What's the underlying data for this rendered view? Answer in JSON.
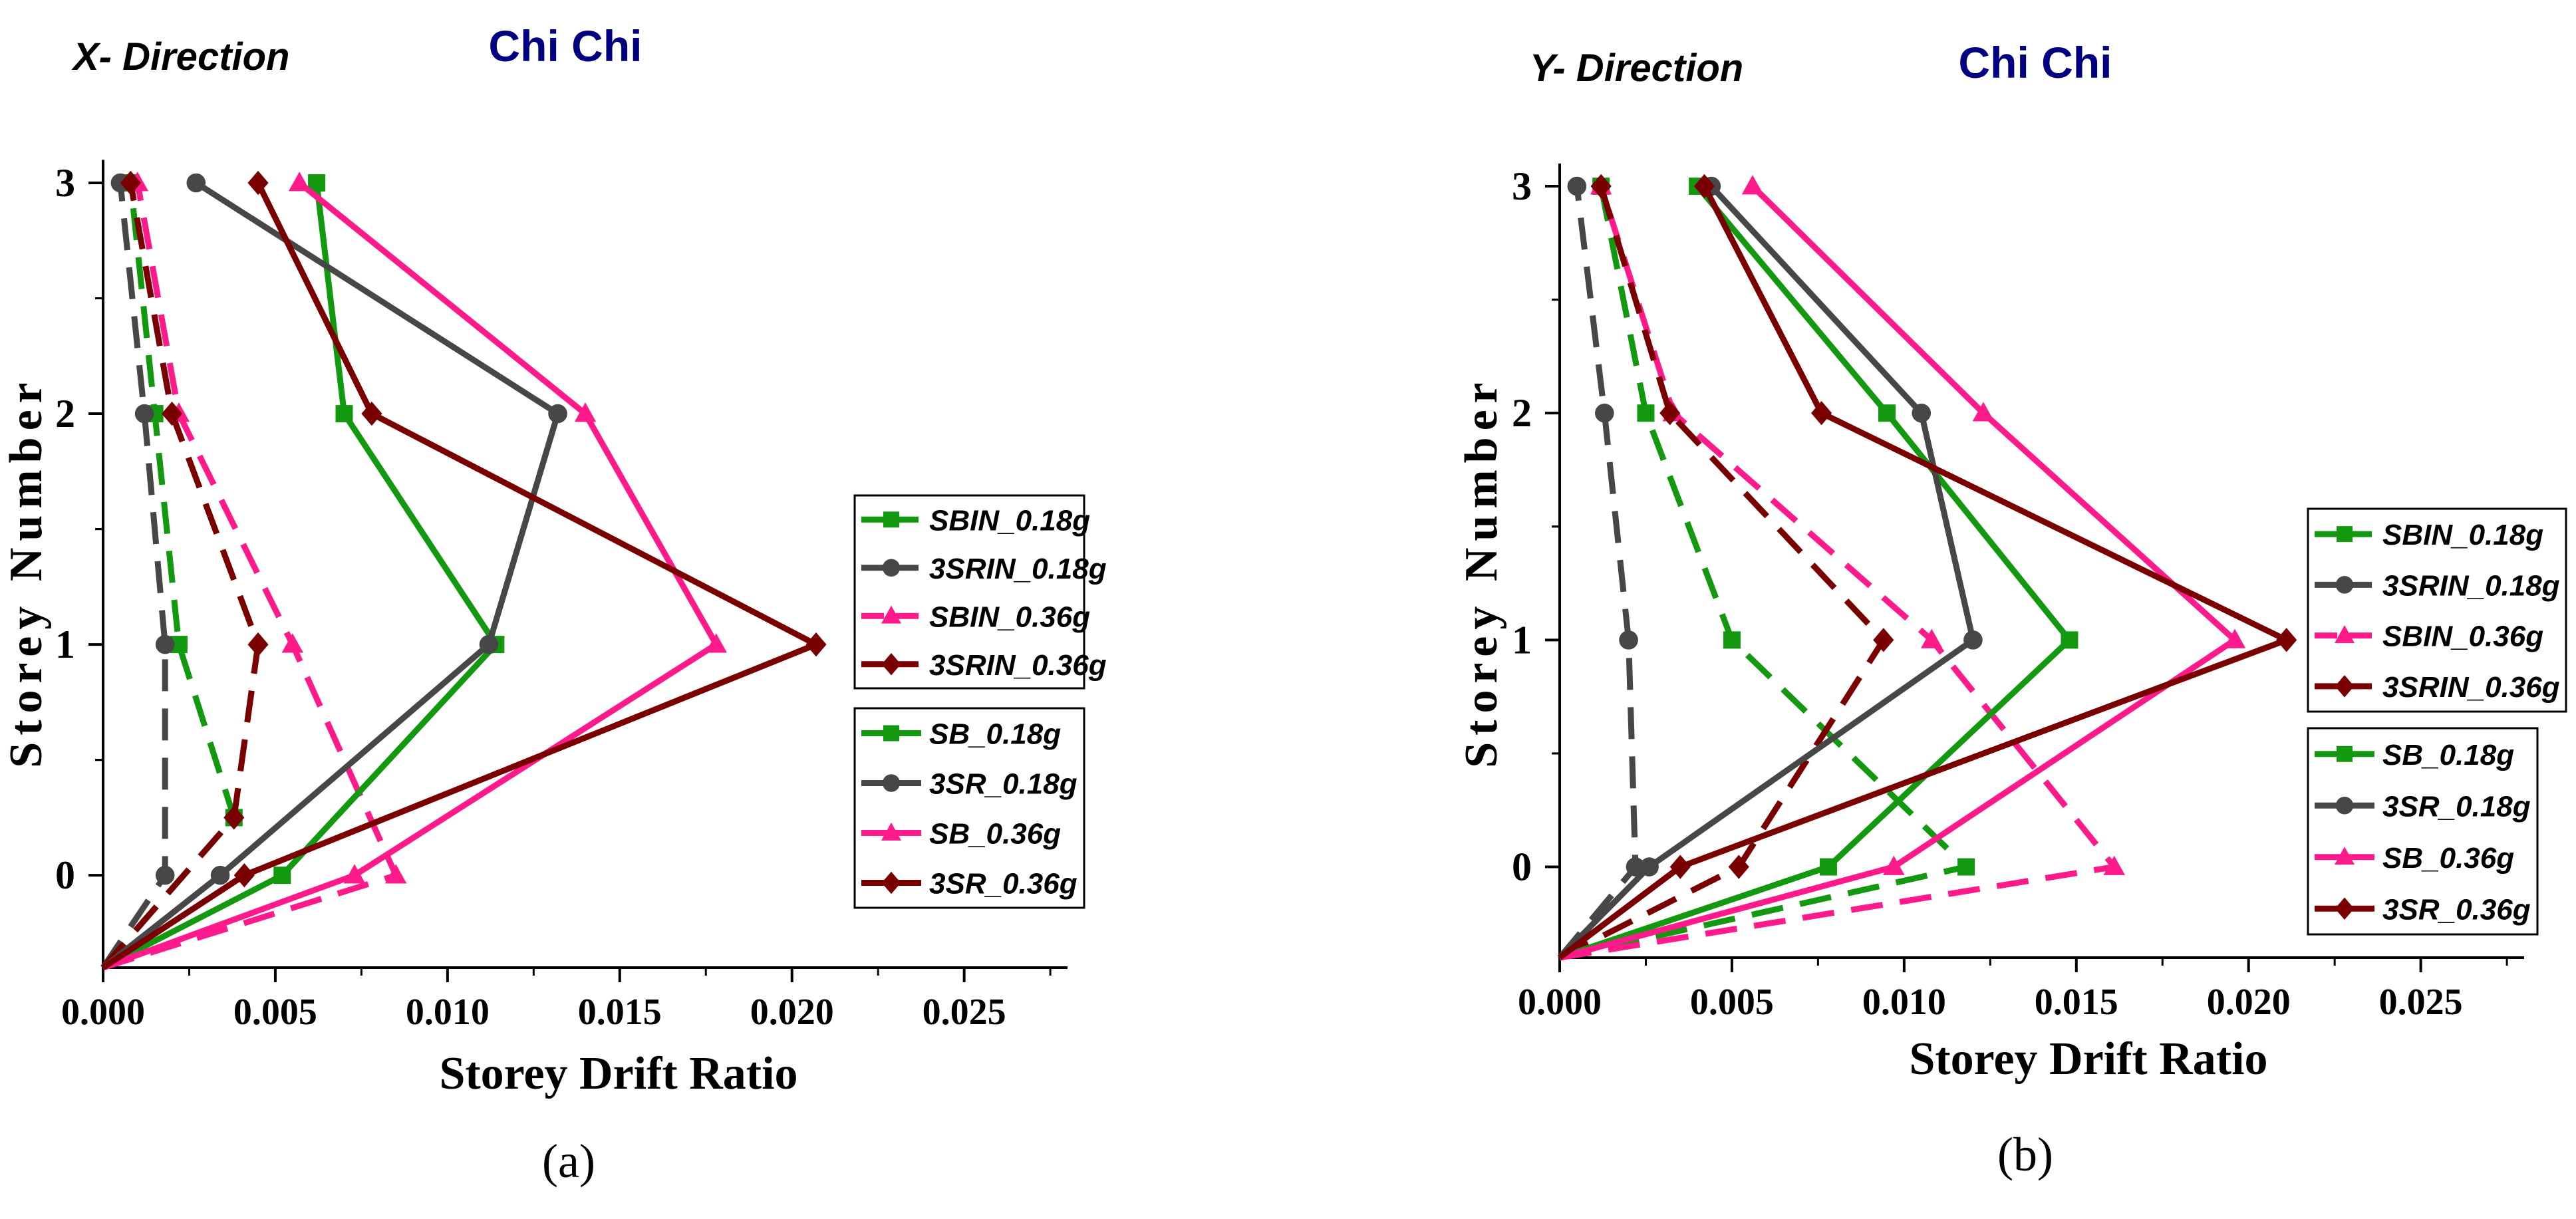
{
  "chart_data": [
    {
      "type": "line",
      "direction_label": "X- Direction",
      "title": "Chi Chi",
      "xlabel": "Storey Drift Ratio",
      "ylabel": "Storey Number",
      "xlim": [
        0,
        0.028
      ],
      "ylim": [
        -0.4,
        3.1
      ],
      "xticks": [
        "0.000",
        "0.005",
        "0.010",
        "0.015",
        "0.020",
        "0.025"
      ],
      "yticks": [
        "0",
        "1",
        "2",
        "3"
      ],
      "subcaption": "(a)",
      "series": [
        {
          "name": "SBIN_0.18g",
          "color": "#13990f",
          "dashed": true,
          "marker": "square",
          "points": [
            [
              0.0,
              -0.4
            ],
            [
              0.0038,
              0.25
            ],
            [
              0.0022,
              1
            ],
            [
              0.0015,
              2
            ],
            [
              0.0008,
              3
            ]
          ]
        },
        {
          "name": "3SRIN_0.18g",
          "color": "#474747",
          "dashed": true,
          "marker": "circle",
          "points": [
            [
              0.0,
              -0.4
            ],
            [
              0.0018,
              0
            ],
            [
              0.0018,
              1
            ],
            [
              0.0012,
              2
            ],
            [
              0.0005,
              3
            ]
          ]
        },
        {
          "name": "SBIN_0.36g",
          "color": "#ff1a8c",
          "dashed": true,
          "marker": "triangle",
          "points": [
            [
              0.0,
              -0.4
            ],
            [
              0.0085,
              0
            ],
            [
              0.0055,
              1
            ],
            [
              0.0022,
              2
            ],
            [
              0.001,
              3
            ]
          ]
        },
        {
          "name": "3SRIN_0.36g",
          "color": "#7a0000",
          "dashed": true,
          "marker": "diamond",
          "points": [
            [
              0.0,
              -0.4
            ],
            [
              0.0038,
              0.25
            ],
            [
              0.0045,
              1
            ],
            [
              0.002,
              2
            ],
            [
              0.0008,
              3
            ]
          ]
        },
        {
          "name": "SB_0.18g",
          "color": "#13990f",
          "dashed": false,
          "marker": "square",
          "points": [
            [
              0.0,
              -0.4
            ],
            [
              0.0052,
              0
            ],
            [
              0.0114,
              1
            ],
            [
              0.007,
              2
            ],
            [
              0.0062,
              3
            ]
          ]
        },
        {
          "name": "3SR_0.18g",
          "color": "#474747",
          "dashed": false,
          "marker": "circle",
          "points": [
            [
              0.0,
              -0.4
            ],
            [
              0.0034,
              0
            ],
            [
              0.0112,
              1
            ],
            [
              0.0132,
              2
            ],
            [
              0.0027,
              3
            ]
          ]
        },
        {
          "name": "SB_0.36g",
          "color": "#ff1a8c",
          "dashed": false,
          "marker": "triangle",
          "points": [
            [
              0.0,
              -0.4
            ],
            [
              0.0073,
              0
            ],
            [
              0.0178,
              1
            ],
            [
              0.014,
              2
            ],
            [
              0.0057,
              3
            ]
          ]
        },
        {
          "name": "3SR_0.36g",
          "color": "#7a0000",
          "dashed": false,
          "marker": "diamond",
          "points": [
            [
              0.0,
              -0.4
            ],
            [
              0.0041,
              0
            ],
            [
              0.0207,
              1
            ],
            [
              0.0078,
              2
            ],
            [
              0.0045,
              3
            ]
          ]
        }
      ]
    },
    {
      "type": "line",
      "direction_label": "Y- Direction",
      "title": "Chi Chi",
      "xlabel": "Storey Drift Ratio",
      "ylabel": "Storey Number",
      "xlim": [
        0,
        0.028
      ],
      "ylim": [
        -0.4,
        3.1
      ],
      "xticks": [
        "0.000",
        "0.005",
        "0.010",
        "0.015",
        "0.020",
        "0.025"
      ],
      "yticks": [
        "0",
        "1",
        "2",
        "3"
      ],
      "subcaption": "(b)",
      "series": [
        {
          "name": "SBIN_0.18g",
          "color": "#13990f",
          "dashed": true,
          "marker": "square",
          "points": [
            [
              0.0,
              -0.4
            ],
            [
              0.0118,
              0
            ],
            [
              0.005,
              1
            ],
            [
              0.0025,
              2
            ],
            [
              0.0012,
              3
            ]
          ]
        },
        {
          "name": "3SRIN_0.18g",
          "color": "#474747",
          "dashed": true,
          "marker": "circle",
          "points": [
            [
              0.0,
              -0.4
            ],
            [
              0.0022,
              0
            ],
            [
              0.002,
              1
            ],
            [
              0.0013,
              2
            ],
            [
              0.0005,
              3
            ]
          ]
        },
        {
          "name": "SBIN_0.36g",
          "color": "#ff1a8c",
          "dashed": true,
          "marker": "triangle",
          "points": [
            [
              0.0,
              -0.4
            ],
            [
              0.0161,
              0
            ],
            [
              0.0108,
              1
            ],
            [
              0.0033,
              2
            ],
            [
              0.0012,
              3
            ]
          ]
        },
        {
          "name": "3SRIN_0.36g",
          "color": "#7a0000",
          "dashed": true,
          "marker": "diamond",
          "points": [
            [
              0.0,
              -0.4
            ],
            [
              0.0052,
              0
            ],
            [
              0.0094,
              1
            ],
            [
              0.0032,
              2
            ],
            [
              0.0012,
              3
            ]
          ]
        },
        {
          "name": "SB_0.18g",
          "color": "#13990f",
          "dashed": false,
          "marker": "square",
          "points": [
            [
              0.0,
              -0.4
            ],
            [
              0.0078,
              0
            ],
            [
              0.0148,
              1
            ],
            [
              0.0095,
              2
            ],
            [
              0.004,
              3
            ]
          ]
        },
        {
          "name": "3SR_0.18g",
          "color": "#474747",
          "dashed": false,
          "marker": "circle",
          "points": [
            [
              0.0,
              -0.4
            ],
            [
              0.0026,
              0
            ],
            [
              0.012,
              1
            ],
            [
              0.0105,
              2
            ],
            [
              0.0044,
              3
            ]
          ]
        },
        {
          "name": "SB_0.36g",
          "color": "#ff1a8c",
          "dashed": false,
          "marker": "triangle",
          "points": [
            [
              0.0,
              -0.4
            ],
            [
              0.0097,
              0
            ],
            [
              0.0196,
              1
            ],
            [
              0.0123,
              2
            ],
            [
              0.0056,
              3
            ]
          ]
        },
        {
          "name": "3SR_0.36g",
          "color": "#7a0000",
          "dashed": false,
          "marker": "diamond",
          "points": [
            [
              0.0,
              -0.4
            ],
            [
              0.0035,
              0
            ],
            [
              0.0211,
              1
            ],
            [
              0.0076,
              2
            ],
            [
              0.0042,
              3
            ]
          ]
        }
      ]
    }
  ]
}
